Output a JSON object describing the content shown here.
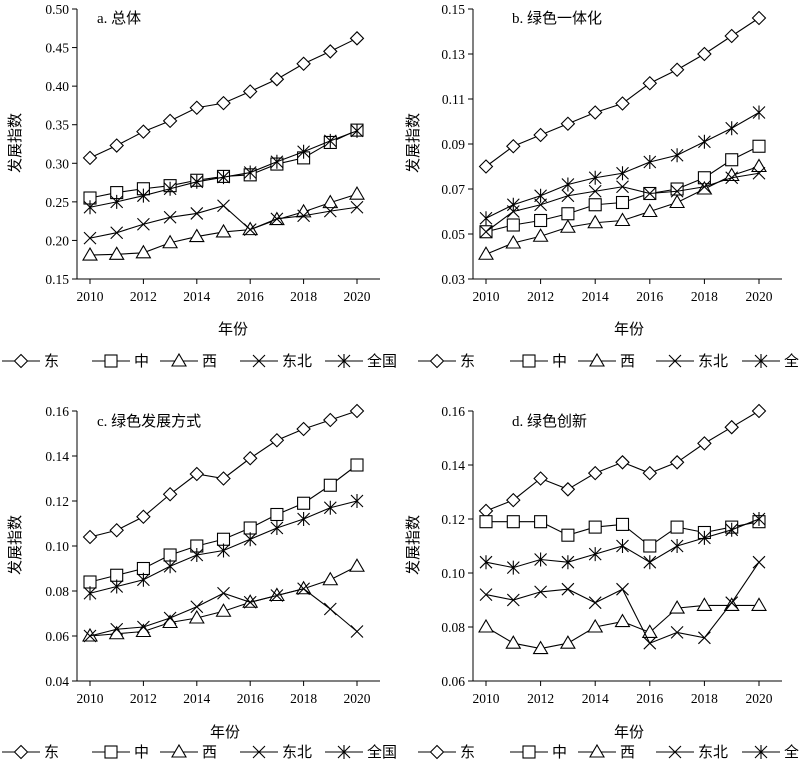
{
  "legend": [
    {
      "label": "东",
      "marker": "diamond"
    },
    {
      "label": "中",
      "marker": "square"
    },
    {
      "label": "西",
      "marker": "triangle"
    },
    {
      "label": "东北",
      "marker": "x"
    },
    {
      "label": "全国",
      "marker": "star"
    }
  ],
  "chart_data": [
    {
      "type": "line",
      "title": "a. 总体",
      "xlabel": "年份",
      "ylabel": "发展指数",
      "x": [
        2010,
        2011,
        2012,
        2013,
        2014,
        2015,
        2016,
        2017,
        2018,
        2019,
        2020
      ],
      "xticks": [
        "2010",
        "2012",
        "2014",
        "2016",
        "2018",
        "2020"
      ],
      "xlim": [
        2010,
        2020
      ],
      "ylim": [
        0.15,
        0.5
      ],
      "yticks": [
        "0.15",
        "0.20",
        "0.25",
        "0.30",
        "0.35",
        "0.40",
        "0.45",
        "0.50"
      ],
      "series": [
        {
          "name": "东",
          "marker": "diamond",
          "values": [
            0.307,
            0.323,
            0.341,
            0.355,
            0.372,
            0.378,
            0.393,
            0.409,
            0.429,
            0.445,
            0.462
          ]
        },
        {
          "name": "中",
          "marker": "square",
          "values": [
            0.255,
            0.262,
            0.267,
            0.271,
            0.278,
            0.283,
            0.285,
            0.299,
            0.307,
            0.327,
            0.343
          ]
        },
        {
          "name": "西",
          "marker": "triangle",
          "values": [
            0.181,
            0.182,
            0.184,
            0.197,
            0.205,
            0.211,
            0.214,
            0.227,
            0.237,
            0.249,
            0.26
          ]
        },
        {
          "name": "东北",
          "marker": "x",
          "values": [
            0.203,
            0.21,
            0.221,
            0.23,
            0.235,
            0.245,
            0.214,
            0.228,
            0.232,
            0.238,
            0.243
          ]
        },
        {
          "name": "全国",
          "marker": "star",
          "values": [
            0.243,
            0.25,
            0.258,
            0.267,
            0.276,
            0.282,
            0.288,
            0.302,
            0.315,
            0.329,
            0.342
          ]
        }
      ]
    },
    {
      "type": "line",
      "title": "b. 绿色一体化",
      "xlabel": "年份",
      "ylabel": "发展指数",
      "x": [
        2010,
        2011,
        2012,
        2013,
        2014,
        2015,
        2016,
        2017,
        2018,
        2019,
        2020
      ],
      "xticks": [
        "2010",
        "2012",
        "2014",
        "2016",
        "2018",
        "2020"
      ],
      "xlim": [
        2010,
        2020
      ],
      "ylim": [
        0.03,
        0.15
      ],
      "yticks": [
        "0.03",
        "0.05",
        "0.07",
        "0.09",
        "0.11",
        "0.13",
        "0.15"
      ],
      "series": [
        {
          "name": "东",
          "marker": "diamond",
          "values": [
            0.08,
            0.089,
            0.094,
            0.099,
            0.104,
            0.108,
            0.117,
            0.123,
            0.13,
            0.138,
            0.146
          ]
        },
        {
          "name": "中",
          "marker": "square",
          "values": [
            0.051,
            0.054,
            0.056,
            0.059,
            0.063,
            0.064,
            0.068,
            0.07,
            0.075,
            0.083,
            0.089
          ]
        },
        {
          "name": "西",
          "marker": "triangle",
          "values": [
            0.041,
            0.046,
            0.049,
            0.053,
            0.055,
            0.056,
            0.06,
            0.064,
            0.07,
            0.076,
            0.08
          ]
        },
        {
          "name": "东北",
          "marker": "x",
          "values": [
            0.051,
            0.06,
            0.063,
            0.067,
            0.069,
            0.071,
            0.068,
            0.069,
            0.071,
            0.075,
            0.077
          ]
        },
        {
          "name": "全国",
          "marker": "star",
          "values": [
            0.057,
            0.063,
            0.067,
            0.072,
            0.075,
            0.077,
            0.082,
            0.085,
            0.091,
            0.097,
            0.104
          ]
        }
      ]
    },
    {
      "type": "line",
      "title": "c. 绿色发展方式",
      "xlabel": "年份",
      "ylabel": "发展指数",
      "x": [
        2010,
        2011,
        2012,
        2013,
        2014,
        2015,
        2016,
        2017,
        2018,
        2019,
        2020
      ],
      "xticks": [
        "2010",
        "2012",
        "2014",
        "2016",
        "2018",
        "2020"
      ],
      "xlim": [
        2010,
        2020
      ],
      "ylim": [
        0.04,
        0.16
      ],
      "yticks": [
        "0.04",
        "0.06",
        "0.08",
        "0.10",
        "0.12",
        "0.14",
        "0.16"
      ],
      "series": [
        {
          "name": "东",
          "marker": "diamond",
          "values": [
            0.104,
            0.107,
            0.113,
            0.123,
            0.132,
            0.13,
            0.139,
            0.147,
            0.152,
            0.156,
            0.16
          ]
        },
        {
          "name": "中",
          "marker": "square",
          "values": [
            0.084,
            0.087,
            0.09,
            0.096,
            0.1,
            0.103,
            0.108,
            0.114,
            0.119,
            0.127,
            0.136
          ]
        },
        {
          "name": "西",
          "marker": "triangle",
          "values": [
            0.06,
            0.061,
            0.062,
            0.066,
            0.068,
            0.071,
            0.075,
            0.078,
            0.081,
            0.085,
            0.091
          ]
        },
        {
          "name": "东北",
          "marker": "x",
          "values": [
            0.06,
            0.063,
            0.064,
            0.068,
            0.073,
            0.079,
            0.075,
            0.078,
            0.081,
            0.072,
            0.062
          ]
        },
        {
          "name": "全国",
          "marker": "star",
          "values": [
            0.079,
            0.082,
            0.085,
            0.091,
            0.096,
            0.098,
            0.103,
            0.108,
            0.112,
            0.117,
            0.12
          ]
        }
      ]
    },
    {
      "type": "line",
      "title": "d. 绿色创新",
      "xlabel": "年份",
      "ylabel": "发展指数",
      "x": [
        2010,
        2011,
        2012,
        2013,
        2014,
        2015,
        2016,
        2017,
        2018,
        2019,
        2020
      ],
      "xticks": [
        "2010",
        "2012",
        "2014",
        "2016",
        "2018",
        "2020"
      ],
      "xlim": [
        2010,
        2020
      ],
      "ylim": [
        0.06,
        0.16
      ],
      "yticks": [
        "0.06",
        "0.08",
        "0.10",
        "0.12",
        "0.14",
        "0.16"
      ],
      "series": [
        {
          "name": "东",
          "marker": "diamond",
          "values": [
            0.123,
            0.127,
            0.135,
            0.131,
            0.137,
            0.141,
            0.137,
            0.141,
            0.148,
            0.154,
            0.16
          ]
        },
        {
          "name": "中",
          "marker": "square",
          "values": [
            0.119,
            0.119,
            0.119,
            0.114,
            0.117,
            0.118,
            0.11,
            0.117,
            0.115,
            0.117,
            0.119
          ]
        },
        {
          "name": "西",
          "marker": "triangle",
          "values": [
            0.08,
            0.074,
            0.072,
            0.074,
            0.08,
            0.082,
            0.078,
            0.087,
            0.088,
            0.088,
            0.088
          ]
        },
        {
          "name": "东北",
          "marker": "x",
          "values": [
            0.092,
            0.09,
            0.093,
            0.094,
            0.089,
            0.094,
            0.074,
            0.078,
            0.076,
            0.089,
            0.104
          ]
        },
        {
          "name": "全国",
          "marker": "star",
          "values": [
            0.104,
            0.102,
            0.105,
            0.104,
            0.107,
            0.11,
            0.104,
            0.11,
            0.113,
            0.116,
            0.12
          ]
        }
      ]
    }
  ]
}
